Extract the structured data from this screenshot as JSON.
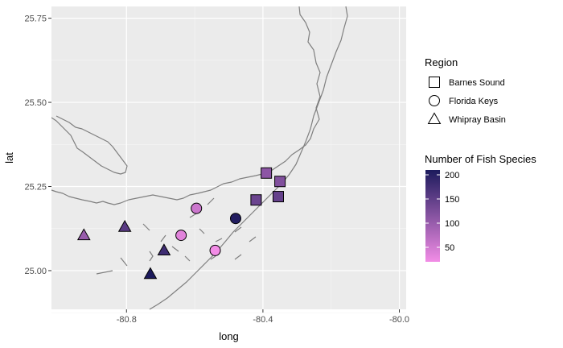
{
  "chart_data": {
    "type": "scatter",
    "title": "",
    "xlabel": "long",
    "ylabel": "lat",
    "xlim": [
      -81.02,
      -79.98
    ],
    "ylim": [
      24.885,
      25.785
    ],
    "xticks": [
      -80.8,
      -80.4,
      -80.0
    ],
    "xtick_labels": [
      "-80.8",
      "-80.4",
      "-80.0"
    ],
    "yticks": [
      25.0,
      25.25,
      25.5,
      25.75
    ],
    "ytick_labels": [
      "25.00",
      "25.25",
      "25.50",
      "25.75"
    ],
    "grid": true,
    "panel_background": "#ebebeb",
    "coastline_color": "#7f7f7f",
    "shape_legend": {
      "title": "Region",
      "entries": [
        {
          "label": "Barnes Sound",
          "shape": "square"
        },
        {
          "label": "Florida Keys",
          "shape": "circle"
        },
        {
          "label": "Whipray Basin",
          "shape": "triangle"
        }
      ]
    },
    "color_legend": {
      "title": "Number of Fish Species",
      "min": 20,
      "max": 210,
      "low_color": "#f28ce6",
      "high_color": "#1c1a5c",
      "breaks": [
        50,
        100,
        150,
        200
      ],
      "break_labels": [
        "50",
        "100",
        "150",
        "200"
      ]
    },
    "points": [
      {
        "long": -80.39,
        "lat": 25.29,
        "region": "Barnes Sound",
        "species": 110
      },
      {
        "long": -80.35,
        "lat": 25.265,
        "region": "Barnes Sound",
        "species": 120
      },
      {
        "long": -80.42,
        "lat": 25.21,
        "region": "Barnes Sound",
        "species": 140
      },
      {
        "long": -80.355,
        "lat": 25.22,
        "region": "Barnes Sound",
        "species": 145
      },
      {
        "long": -80.595,
        "lat": 25.185,
        "region": "Florida Keys",
        "species": 55
      },
      {
        "long": -80.48,
        "lat": 25.155,
        "region": "Florida Keys",
        "species": 205
      },
      {
        "long": -80.64,
        "lat": 25.105,
        "region": "Florida Keys",
        "species": 35
      },
      {
        "long": -80.54,
        "lat": 25.06,
        "region": "Florida Keys",
        "species": 20
      },
      {
        "long": -80.925,
        "lat": 25.105,
        "region": "Whipray Basin",
        "species": 100
      },
      {
        "long": -80.805,
        "lat": 25.13,
        "region": "Whipray Basin",
        "species": 155
      },
      {
        "long": -80.69,
        "lat": 25.06,
        "region": "Whipray Basin",
        "species": 180
      },
      {
        "long": -80.73,
        "lat": 24.99,
        "region": "Whipray Basin",
        "species": 210
      }
    ]
  }
}
